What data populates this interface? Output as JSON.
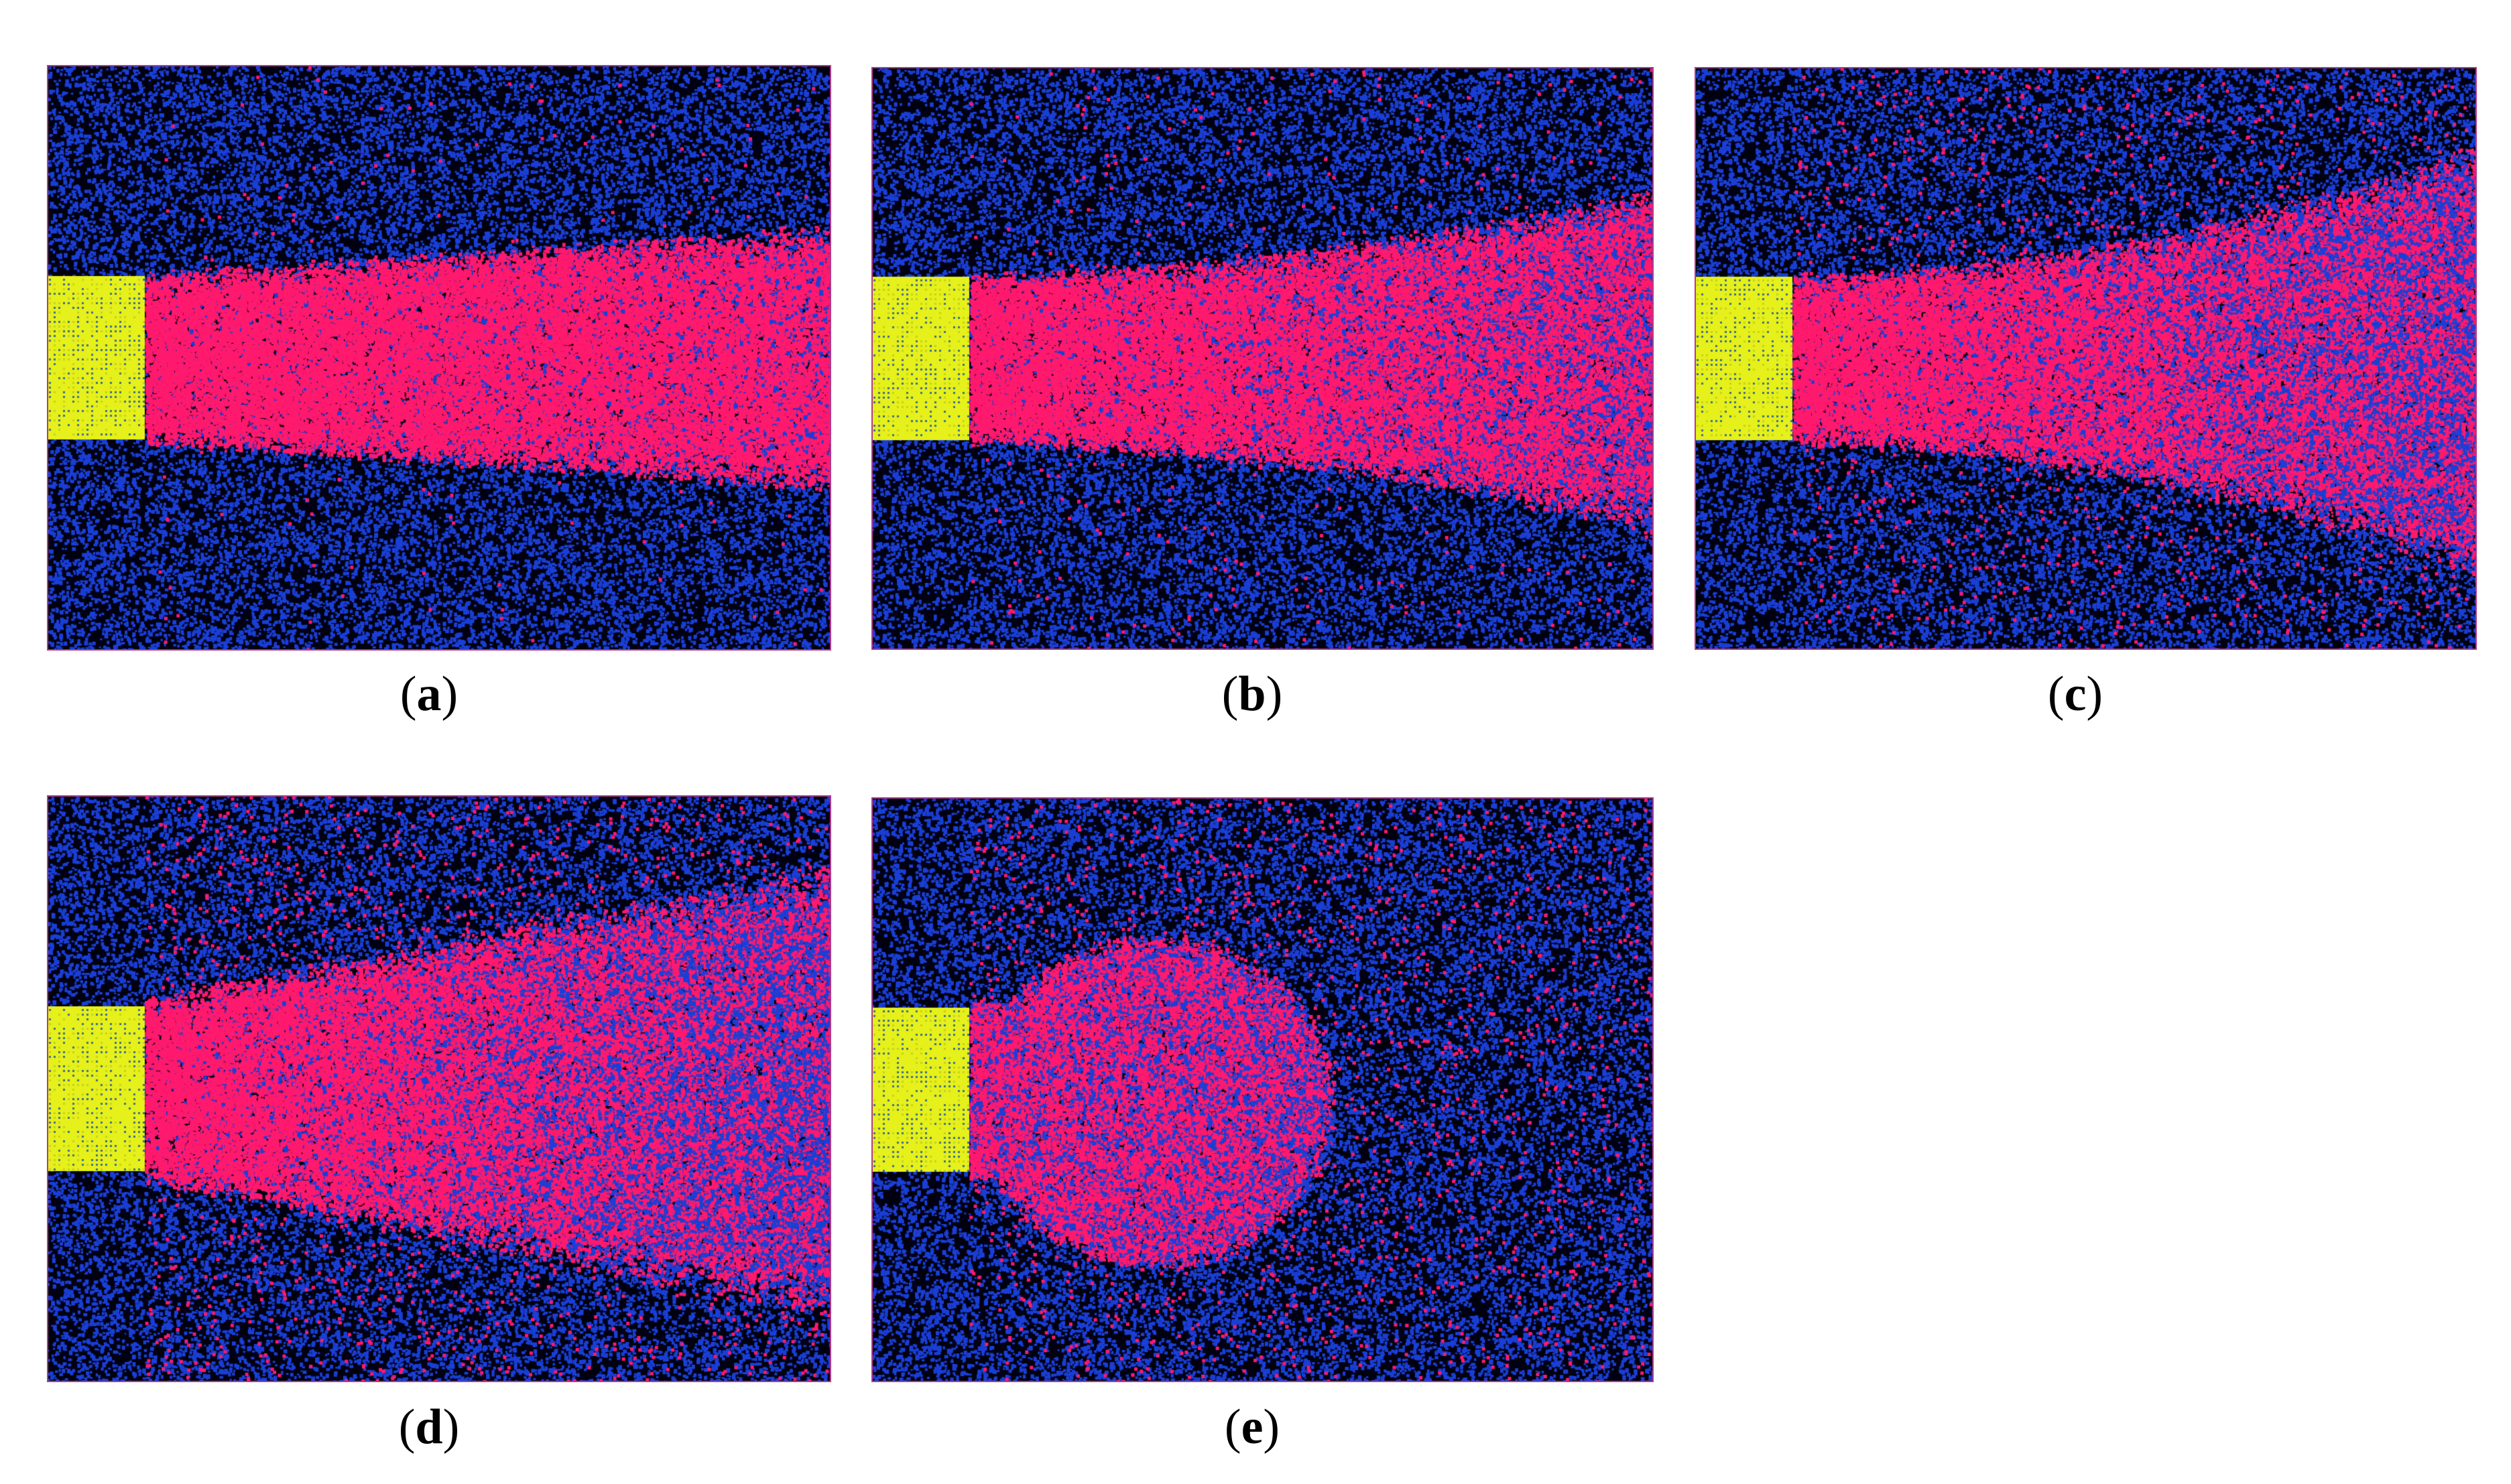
{
  "panels": [
    {
      "id": "a",
      "caption_open": "(",
      "caption_letter": "a",
      "caption_close": ")"
    },
    {
      "id": "b",
      "caption_open": "(",
      "caption_letter": "b",
      "caption_close": ")"
    },
    {
      "id": "c",
      "caption_open": "(",
      "caption_letter": "c",
      "caption_close": ")"
    },
    {
      "id": "d",
      "caption_open": "(",
      "caption_letter": "d",
      "caption_close": ")"
    },
    {
      "id": "e",
      "caption_open": "(",
      "caption_letter": "e",
      "caption_close": ")"
    }
  ],
  "colors": {
    "background": "#000010",
    "particle_blue": "#1a3fd6",
    "particle_pink": "#ff1a6e",
    "block_yellow": "#e6f01a",
    "block_dots": "#3a6f8a",
    "frame": "#b23a8c"
  }
}
